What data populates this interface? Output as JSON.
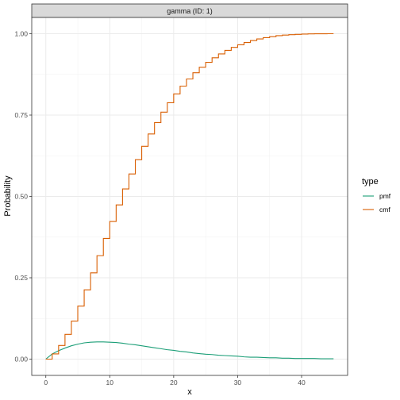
{
  "chart_data": {
    "type": "line",
    "facet_label": "gamma (ID: 1)",
    "xlabel": "x",
    "ylabel": "Probability",
    "xlim": [
      -2.2,
      47.2
    ],
    "ylim": [
      -0.05,
      1.05
    ],
    "x_ticks": [
      0,
      10,
      20,
      30,
      40
    ],
    "x_tick_labels": [
      "0",
      "10",
      "20",
      "30",
      "40"
    ],
    "y_ticks": [
      0,
      0.25,
      0.5,
      0.75,
      1
    ],
    "y_tick_labels": [
      "0.00",
      "0.25",
      "0.50",
      "0.75",
      "1.00"
    ],
    "grid": true,
    "legend": {
      "title": "type",
      "position": "right",
      "entries": [
        {
          "label": "pmf",
          "color": "#1b9e77"
        },
        {
          "label": "cmf",
          "color": "#d95f02"
        }
      ]
    },
    "series": [
      {
        "name": "pmf",
        "style": "line",
        "color": "#1b9e77",
        "x": [
          0,
          1,
          2,
          3,
          4,
          5,
          6,
          7,
          8,
          9,
          10,
          11,
          12,
          13,
          14,
          15,
          16,
          17,
          18,
          19,
          20,
          21,
          22,
          23,
          24,
          25,
          26,
          27,
          28,
          29,
          30,
          31,
          32,
          33,
          34,
          35,
          36,
          37,
          38,
          39,
          40,
          41,
          42,
          43,
          44,
          45
        ],
        "values": [
          0.0,
          0.016,
          0.026,
          0.034,
          0.041,
          0.046,
          0.05,
          0.052,
          0.053,
          0.053,
          0.052,
          0.051,
          0.049,
          0.046,
          0.044,
          0.041,
          0.038,
          0.035,
          0.032,
          0.029,
          0.027,
          0.024,
          0.022,
          0.019,
          0.017,
          0.015,
          0.014,
          0.012,
          0.011,
          0.01,
          0.009,
          0.007,
          0.006,
          0.006,
          0.005,
          0.004,
          0.004,
          0.003,
          0.003,
          0.002,
          0.002,
          0.002,
          0.002,
          0.001,
          0.001,
          0.001
        ]
      },
      {
        "name": "cmf",
        "style": "step",
        "color": "#d95f02",
        "x": [
          0,
          1,
          2,
          3,
          4,
          5,
          6,
          7,
          8,
          9,
          10,
          11,
          12,
          13,
          14,
          15,
          16,
          17,
          18,
          19,
          20,
          21,
          22,
          23,
          24,
          25,
          26,
          27,
          28,
          29,
          30,
          31,
          32,
          33,
          34,
          35,
          36,
          37,
          38,
          39,
          40,
          41,
          42,
          43,
          44,
          45
        ],
        "values": [
          0.0,
          0.016,
          0.042,
          0.076,
          0.117,
          0.163,
          0.213,
          0.265,
          0.318,
          0.371,
          0.423,
          0.474,
          0.523,
          0.569,
          0.613,
          0.654,
          0.692,
          0.727,
          0.759,
          0.788,
          0.815,
          0.839,
          0.861,
          0.88,
          0.897,
          0.912,
          0.926,
          0.938,
          0.949,
          0.958,
          0.966,
          0.973,
          0.979,
          0.984,
          0.988,
          0.991,
          0.994,
          0.996,
          0.997,
          0.998,
          0.999,
          0.9995,
          0.9998,
          0.9999,
          1.0,
          1.0
        ]
      }
    ]
  }
}
